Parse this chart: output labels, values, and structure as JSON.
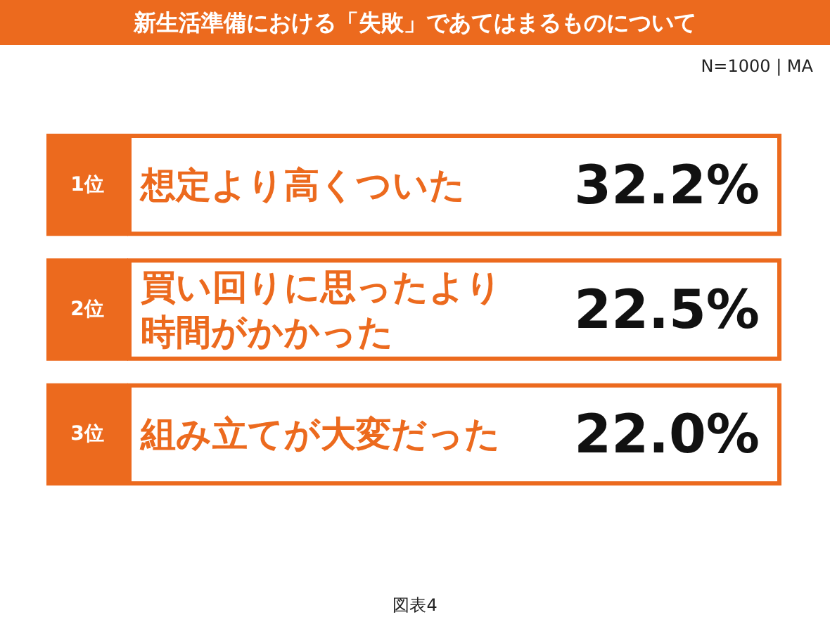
{
  "chart_data": {
    "type": "other",
    "title": "新生活準備における「失敗」であてはまるものについて",
    "subtitle": "N=1000 | MA",
    "y_categories": [
      "1位",
      "2位",
      "3位"
    ],
    "categories": [
      "想定より高くついた",
      "買い回りに思ったより時間がかかった",
      "組み立てが大変だった"
    ],
    "values": [
      32.2,
      22.5,
      22.0
    ],
    "value_labels": [
      "32.2%",
      "22.5%",
      "22.0%"
    ],
    "color": "#ec6a1e",
    "annotations": [
      "図表4"
    ]
  }
}
